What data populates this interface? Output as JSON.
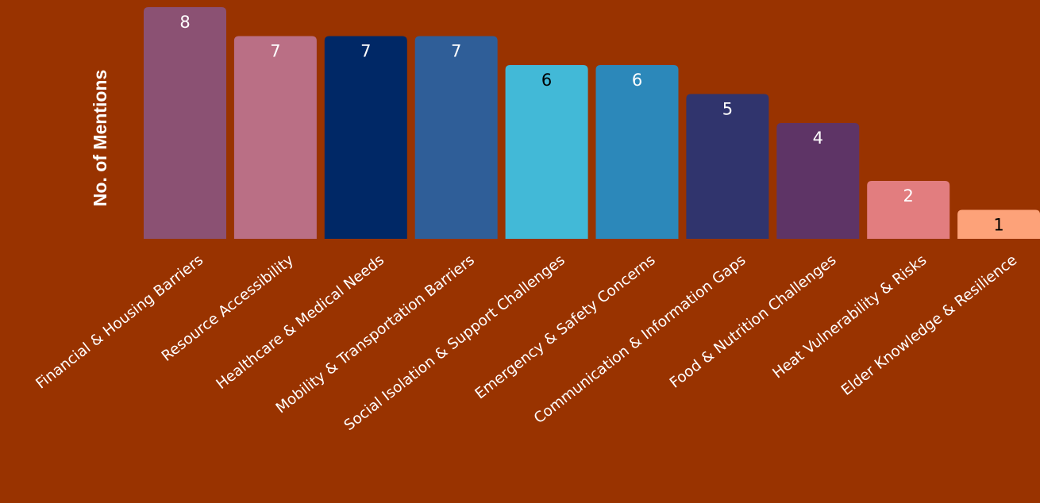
{
  "chart_data": {
    "type": "bar",
    "title": "",
    "xlabel": "",
    "ylabel": "No. of Mentions",
    "ylim": [
      0,
      8
    ],
    "grid": false,
    "legend": "none",
    "categories": [
      "Financial & Housing Barriers",
      "Resource Accessibility",
      "Healthcare & Medical Needs",
      "Mobility & Transportation Barriers",
      "Social Isolation & Support Challenges",
      "Emergency & Safety Concerns",
      "Communication & Information Gaps",
      "Food & Nutrition Challenges",
      "Heat Vulnerability & Risks",
      "Elder Knowledge & Resilience"
    ],
    "values": [
      8,
      7,
      7,
      7,
      6,
      6,
      5,
      4,
      2,
      1
    ],
    "bar_colors": [
      "#8B5173",
      "#BA6F85",
      "#002866",
      "#2F5E98",
      "#42B9D7",
      "#2C88BA",
      "#30346D",
      "#5E3466",
      "#E27D7F",
      "#FDA279"
    ],
    "value_label_colors": [
      "#ffffff",
      "#ffffff",
      "#ffffff",
      "#ffffff",
      "#000000",
      "#ffffff",
      "#ffffff",
      "#ffffff",
      "#ffffff",
      "#000000"
    ],
    "background": "#993300"
  }
}
